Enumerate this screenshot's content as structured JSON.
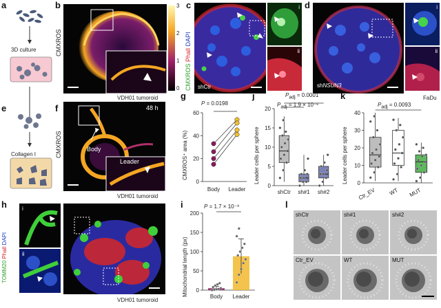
{
  "panels": {
    "a": {
      "letter": "a",
      "label": "3D culture"
    },
    "b": {
      "letter": "b",
      "stain": "CMXROS",
      "caption": "VDH01 tumoroid",
      "colorbar_ticks": [
        "3",
        "2",
        "1",
        "0"
      ]
    },
    "c": {
      "letter": "c",
      "stain_green": "CMXROS",
      "stain_red": "Phall",
      "stain_blue": "DAPI",
      "condition": "shCtr",
      "inset_i": "i",
      "inset_ii": "ii"
    },
    "d": {
      "letter": "d",
      "condition": "shNSUN3",
      "condition_prefix": "sh",
      "condition_gene": "NSUN3",
      "inset_i": "i",
      "inset_ii": "ii",
      "caption": "FaDu"
    },
    "e": {
      "letter": "e",
      "label": "Collagen I"
    },
    "f": {
      "letter": "f",
      "stain": "CMXROS",
      "time": "48 h",
      "body": "Body",
      "leader": "Leader",
      "caption": "VDH01 tumoroid"
    },
    "g": {
      "letter": "g",
      "pvalue": "P = 0.0198",
      "p_italic": "P",
      "p_rest": " = 0.0198",
      "ylabel": "CMXROS⁺ area (%)"
    },
    "h": {
      "letter": "h",
      "stain_green": "TOMM20",
      "stain_red": "Phall",
      "stain_blue": "DAPI",
      "inset_i": "i",
      "inset_ii": "ii",
      "caption": "VDH01 tumoroid"
    },
    "i": {
      "letter": "i",
      "p_italic": "P",
      "p_rest": " = 1.7 × 10⁻⁹",
      "ylabel": "Mitochondrial length (px)"
    },
    "j": {
      "letter": "j",
      "p1_italic": "P",
      "p1_sub": "adj",
      "p1_rest": " = 0.0001",
      "p2_italic": "P",
      "p2_sub": "adj",
      "p2_rest": " = 1.9 × 10⁻⁶",
      "ylabel": "Leader cells per sphere"
    },
    "k": {
      "letter": "k",
      "p_italic": "P",
      "p_sub": "adj",
      "p_rest": " = 0.0093",
      "ylabel": "Leader cells per sphere"
    },
    "l": {
      "letter": "l",
      "tiles": [
        "shCtr",
        "sh#1",
        "sh#2",
        "Ctr_EV",
        "WT",
        "MUT"
      ]
    }
  },
  "chart_data": [
    {
      "type": "line",
      "panel": "g",
      "categories": [
        "Body",
        "Leader"
      ],
      "series": [
        {
          "values": [
            33,
            54
          ]
        },
        {
          "values": [
            26,
            51
          ]
        },
        {
          "values": [
            20,
            45
          ]
        },
        {
          "values": [
            15,
            41
          ]
        }
      ],
      "ylabel": "CMXROS⁺ area (%)",
      "ylim": [
        0,
        60
      ],
      "yticks": [
        "0",
        "20",
        "40",
        "60"
      ],
      "colors": {
        "body": "#8b1a5e",
        "leader": "#f2c02e"
      }
    },
    {
      "type": "bar",
      "panel": "i",
      "categories": [
        "Body",
        "Leader"
      ],
      "values": [
        5,
        88
      ],
      "errors": [
        5,
        45
      ],
      "points": [
        [
          0,
          1,
          2,
          3,
          5,
          8,
          12,
          15,
          18
        ],
        [
          20,
          40,
          55,
          70,
          80,
          90,
          100,
          110,
          120,
          140,
          160
        ]
      ],
      "ylabel": "Mitochondrial length (px)",
      "ylim": [
        0,
        200
      ],
      "yticks": [
        "0",
        "50",
        "100",
        "150",
        "200"
      ],
      "colors": {
        "body": "#8b1a5e",
        "leader": "#f2b82e"
      }
    },
    {
      "type": "box",
      "panel": "j",
      "categories": [
        "shCtr",
        "sh#1",
        "sh#2"
      ],
      "boxes": [
        {
          "whisker_low": 1,
          "q1": 6,
          "median": 9,
          "q3": 13,
          "whisker_high": 18,
          "points": [
            2,
            4,
            6,
            7,
            8,
            9,
            10,
            11,
            12,
            13,
            14,
            15,
            17
          ]
        },
        {
          "whisker_low": 0,
          "q1": 1,
          "median": 2,
          "q3": 3,
          "whisker_high": 8,
          "points": [
            0,
            1,
            1,
            2,
            2,
            3,
            3,
            4,
            7
          ]
        },
        {
          "whisker_low": 0,
          "q1": 2,
          "median": 3,
          "q3": 5,
          "whisker_high": 8,
          "points": [
            0,
            1,
            2,
            3,
            3,
            4,
            5,
            6,
            8
          ]
        }
      ],
      "ylabel": "Leader cells per sphere",
      "ylim": [
        0,
        20
      ],
      "yticks": [
        "0",
        "5",
        "10",
        "15",
        "20"
      ],
      "colors": {
        "shCtr": "#bdbdbd",
        "sh1": "#7b82b8",
        "sh2": "#7b82b8"
      }
    },
    {
      "type": "box",
      "panel": "k",
      "categories": [
        "Ctr_EV",
        "WT",
        "MUT"
      ],
      "boxes": [
        {
          "whisker_low": 1,
          "q1": 9,
          "median": 16,
          "q3": 26,
          "whisker_high": 40,
          "points": [
            3,
            6,
            9,
            11,
            13,
            15,
            17,
            19,
            22,
            26,
            30,
            35,
            38
          ]
        },
        {
          "whisker_low": 1,
          "q1": 10,
          "median": 17,
          "q3": 30,
          "whisker_high": 37,
          "points": [
            2,
            5,
            9,
            11,
            14,
            17,
            19,
            22,
            26,
            30,
            33,
            36
          ]
        },
        {
          "whisker_low": 0,
          "q1": 6,
          "median": 12,
          "q3": 16,
          "whisker_high": 23,
          "points": [
            1,
            3,
            6,
            8,
            10,
            12,
            13,
            15,
            16,
            18,
            20,
            22
          ]
        }
      ],
      "ylabel": "Leader cells per sphere",
      "ylim": [
        0,
        40
      ],
      "yticks": [
        "0",
        "10",
        "20",
        "30",
        "40"
      ],
      "colors": {
        "Ctr_EV": "#bdbdbd",
        "WT": "#ffffff",
        "MUT": "#5cb85c"
      }
    }
  ]
}
